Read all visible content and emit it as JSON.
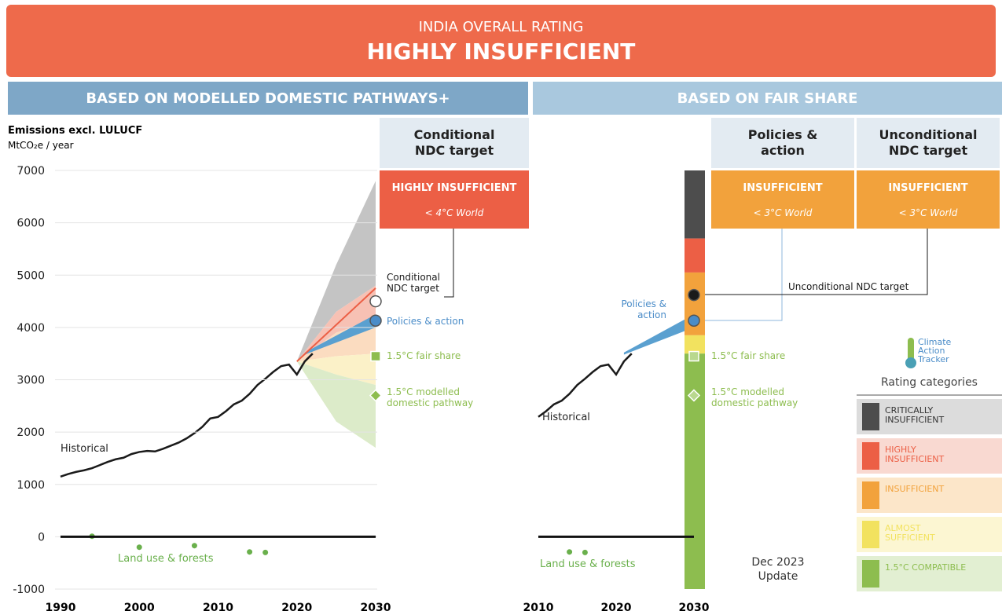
{
  "header": {
    "subtitle": "INDIA OVERALL RATING",
    "title": "HIGHLY INSUFFICIENT"
  },
  "rating_legend": {
    "title": "Rating categories",
    "logo": "Climate Action Tracker",
    "update": "Dec 2023 Update",
    "categories": [
      {
        "label": "CRITICALLY INSUFFICIENT",
        "color": "#4d4d4d",
        "light": "#dcdcdc"
      },
      {
        "label": "HIGHLY INSUFFICIENT",
        "color": "#ec5f45",
        "light": "#f9d9d1"
      },
      {
        "label": "INSUFFICIENT",
        "color": "#f2a23c",
        "light": "#fce6c9"
      },
      {
        "label": "ALMOST SUFFICIENT",
        "color": "#f2e25f",
        "light": "#fcf6d2"
      },
      {
        "label": "1.5°C COMPATIBLE",
        "color": "#8dbd4f",
        "light": "#e2efd2"
      }
    ]
  },
  "chart_data": [
    {
      "type": "line",
      "title": "BASED ON MODELLED DOMESTIC PATHWAYS+",
      "ylabel": "Emissions excl. LULUCF",
      "yunit": "MtCO₂e / year",
      "xlim": [
        1990,
        2030
      ],
      "xticks": [
        1990,
        2000,
        2010,
        2020,
        2030
      ],
      "ylim": [
        -1000,
        7000
      ],
      "yticks": [
        -1000,
        0,
        1000,
        2000,
        3000,
        4000,
        5000,
        6000,
        7000
      ],
      "grid": true,
      "historical": {
        "name": "Historical",
        "color": "#1a1a1a",
        "x": [
          1990,
          1991,
          1992,
          1993,
          1994,
          1995,
          1996,
          1997,
          1998,
          1999,
          2000,
          2001,
          2002,
          2003,
          2004,
          2005,
          2006,
          2007,
          2008,
          2009,
          2010,
          2011,
          2012,
          2013,
          2014,
          2015,
          2016,
          2017,
          2018,
          2019,
          2020,
          2021,
          2022
        ],
        "values": [
          1150,
          1200,
          1240,
          1270,
          1310,
          1370,
          1430,
          1480,
          1510,
          1580,
          1620,
          1640,
          1630,
          1680,
          1740,
          1800,
          1880,
          1980,
          2100,
          2260,
          2290,
          2400,
          2530,
          2600,
          2730,
          2900,
          3020,
          3150,
          3260,
          3290,
          3100,
          3350,
          3500
        ]
      },
      "land_use": {
        "name": "Land use & forests",
        "color": "#6ab04c",
        "x": [
          1994,
          2000,
          2007,
          2014,
          2016
        ],
        "values": [
          10,
          -200,
          -170,
          -290,
          -300
        ]
      },
      "bands": [
        {
          "color": "#c4c4c4",
          "x": [
            2020,
            2025,
            2030
          ],
          "lower": [
            3350,
            4300,
            4800
          ],
          "upper": [
            3350,
            5200,
            6800
          ]
        },
        {
          "color": "#f7c1b4",
          "x": [
            2020,
            2025,
            2030
          ],
          "lower": [
            3350,
            3900,
            4150
          ],
          "upper": [
            3350,
            4300,
            4800
          ]
        },
        {
          "color": "#fbdcc0",
          "x": [
            2020,
            2025,
            2030
          ],
          "lower": [
            3350,
            3450,
            3500
          ],
          "upper": [
            3350,
            3900,
            4150
          ]
        },
        {
          "color": "#fbf1c8",
          "x": [
            2020,
            2025,
            2030
          ],
          "lower": [
            3350,
            3100,
            2900
          ],
          "upper": [
            3350,
            3450,
            3500
          ]
        },
        {
          "color": "#dcebc9",
          "x": [
            2020,
            2025,
            2030
          ],
          "lower": [
            3350,
            2200,
            1700
          ],
          "upper": [
            3350,
            3100,
            2900
          ]
        },
        {
          "color": "#5aa0d0",
          "x": [
            2021,
            2030
          ],
          "lower": [
            3480,
            4000
          ],
          "upper": [
            3520,
            4250
          ]
        }
      ],
      "lines": [
        {
          "color": "#ec5f45",
          "x": [
            2020,
            2030
          ],
          "values": [
            3350,
            4750
          ]
        }
      ],
      "targets": [
        {
          "label": "Conditional NDC target",
          "x": 2030,
          "value": 4500,
          "marker": "circle",
          "color": "#ffffff",
          "text_color": "#1a1a1a"
        },
        {
          "label": "Policies & action",
          "x": 2030,
          "value": 4130,
          "marker": "circle",
          "color": "#4a8cc8",
          "text_color": "#4a8cc8"
        },
        {
          "label": "1.5°C fair share",
          "x": 2030,
          "value": 3450,
          "marker": "square",
          "color": "#8dbd4f",
          "text_color": "#8dbd4f"
        },
        {
          "label": "1.5°C modelled domestic pathway",
          "x": 2030,
          "value": 2700,
          "marker": "diamond",
          "color": "#8dbd4f",
          "text_color": "#8dbd4f"
        }
      ],
      "panels": [
        {
          "heading": "Conditional NDC target",
          "rating": "HIGHLY INSUFFICIENT",
          "world": "< 4°C World",
          "color": "#ec5f45"
        }
      ]
    },
    {
      "type": "line",
      "title": "BASED ON FAIR SHARE",
      "xlim": [
        2010,
        2030
      ],
      "xticks": [
        2010,
        2020,
        2030
      ],
      "ylim": [
        -1000,
        7000
      ],
      "historical": {
        "name": "Historical",
        "color": "#1a1a1a",
        "x": [
          2010,
          2011,
          2012,
          2013,
          2014,
          2015,
          2016,
          2017,
          2018,
          2019,
          2020,
          2021,
          2022
        ],
        "values": [
          2290,
          2400,
          2530,
          2600,
          2730,
          2900,
          3020,
          3150,
          3260,
          3290,
          3100,
          3350,
          3500
        ]
      },
      "land_use": {
        "name": "Land use & forests",
        "color": "#6ab04c",
        "x": [
          2014,
          2016
        ],
        "values": [
          -290,
          -300
        ]
      },
      "bands": [
        {
          "color": "#5aa0d0",
          "x": [
            2021,
            2030
          ],
          "lower": [
            3480,
            4000
          ],
          "upper": [
            3520,
            4250
          ]
        }
      ],
      "fair_share_range": [
        {
          "color": "#4d4d4d",
          "lower": 5700,
          "upper": 7000
        },
        {
          "color": "#ec5f45",
          "lower": 5050,
          "upper": 5700
        },
        {
          "color": "#f2a23c",
          "lower": 3850,
          "upper": 5050
        },
        {
          "color": "#f2e25f",
          "lower": 3500,
          "upper": 3850
        },
        {
          "color": "#8dbd4f",
          "lower": -1000,
          "upper": 3500
        }
      ],
      "targets": [
        {
          "label": "Policies & action",
          "x": 2030,
          "value": 4130,
          "marker": "circle",
          "color": "#4a8cc8",
          "text_color": "#4a8cc8"
        },
        {
          "label": "Unconditional NDC target",
          "x": 2030,
          "value": 4620,
          "marker": "circle",
          "color": "#1a1a1a",
          "text_color": "#1a1a1a"
        },
        {
          "label": "1.5°C fair share",
          "x": 2030,
          "value": 3450,
          "marker": "square",
          "color": "#b9d88f",
          "text_color": "#8dbd4f"
        },
        {
          "label": "1.5°C modelled domestic pathway",
          "x": 2030,
          "value": 2700,
          "marker": "diamond",
          "color": "#b9d88f",
          "text_color": "#8dbd4f"
        }
      ],
      "panels": [
        {
          "heading": "Policies & action",
          "rating": "INSUFFICIENT",
          "world": "< 3°C World",
          "color": "#f2a23c"
        },
        {
          "heading": "Unconditional NDC target",
          "rating": "INSUFFICIENT",
          "world": "< 3°C World",
          "color": "#f2a23c"
        }
      ]
    }
  ]
}
